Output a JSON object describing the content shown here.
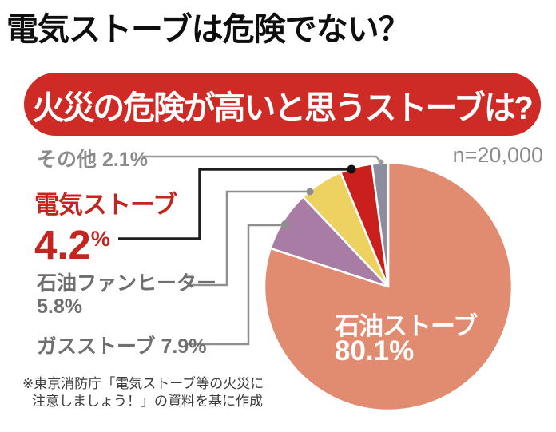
{
  "page": {
    "title": "電気ストーブは危険でない？"
  },
  "banner": {
    "text": "火災の危険が高いと思うストーブは?",
    "background_color": "#CE2B27",
    "text_color": "#FFFFFF"
  },
  "sample_size_label": "n=20,000",
  "labels": {
    "other": "その他 2.1%",
    "electric_name": "電気ストーブ",
    "electric_value": "4.2",
    "electric_pct_sign": "%",
    "oil_fan_name": "石油ファンヒーター",
    "oil_fan_value": "5.8%",
    "gas": "ガスストーブ 7.9%"
  },
  "pie_inner_label": {
    "line1": "石油ストーブ",
    "line2": "80.1%"
  },
  "footnote": {
    "line1": "※東京消防庁「電気ストーブ等の火災に",
    "line2": "注意しましょう！」の資料を基に作成"
  },
  "chart_data": {
    "type": "pie",
    "title": "火災の危険が高いと思うストーブは?",
    "sample_size": "n=20,000",
    "start_angle_deg": 0,
    "direction": "clockwise",
    "legend_position": "leader-lines-left",
    "series": [
      {
        "name": "石油ストーブ",
        "value": 80.1,
        "color": "#E18B71"
      },
      {
        "name": "ガスストーブ",
        "value": 7.9,
        "color": "#A87CA4"
      },
      {
        "name": "石油ファンヒーター",
        "value": 5.8,
        "color": "#EDD161"
      },
      {
        "name": "電気ストーブ",
        "value": 4.2,
        "color": "#C9201D"
      },
      {
        "name": "その他",
        "value": 2.1,
        "color": "#8D8D9E"
      }
    ],
    "highlight_color": "#C4261F",
    "accent_colors": {
      "leader_gray": "#8F8F8F",
      "leader_black": "#1E1E1E",
      "label_gray": "#6F6F6F",
      "muted_gray": "#8B8B8B"
    }
  }
}
